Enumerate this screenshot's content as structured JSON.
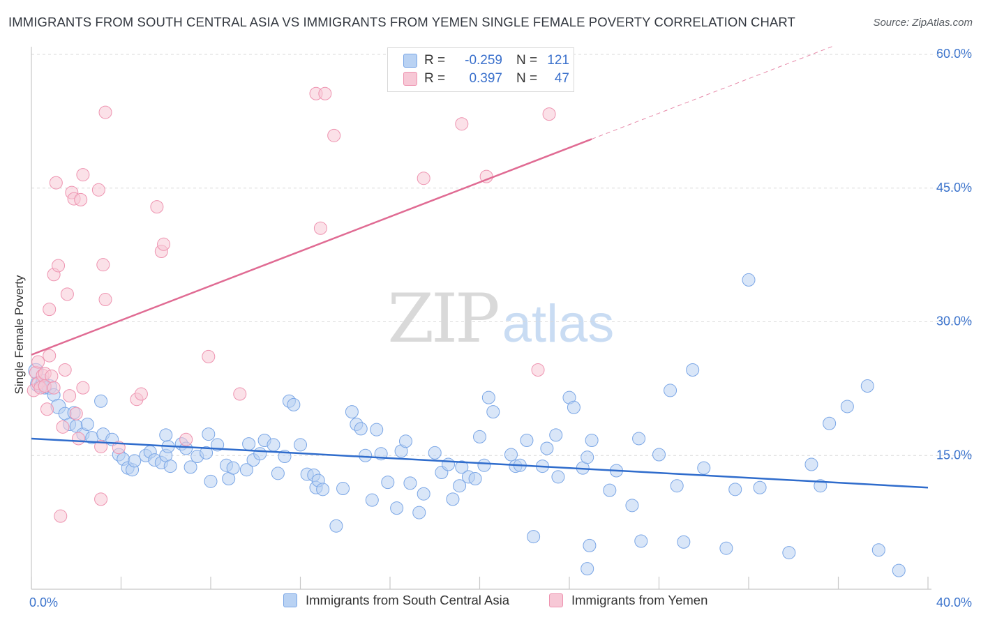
{
  "header": {
    "title": "IMMIGRANTS FROM SOUTH CENTRAL ASIA VS IMMIGRANTS FROM YEMEN SINGLE FEMALE POVERTY CORRELATION CHART",
    "source": "Source: ZipAtlas.com"
  },
  "watermark": {
    "zip": "ZIP",
    "atlas": "atlas"
  },
  "legend_top": {
    "rows": [
      {
        "r_label": "R =",
        "r_value": "-0.259",
        "n_label": "N =",
        "n_value": "121"
      },
      {
        "r_label": "R =",
        "r_value": "0.397",
        "n_label": "N =",
        "n_value": "47"
      }
    ]
  },
  "colors": {
    "blue_fill": "#b9d2f3",
    "blue_stroke": "#7aa6e6",
    "blue_line": "#2f6ccc",
    "pink_fill": "#f7c8d6",
    "pink_stroke": "#ee93b0",
    "pink_line": "#e06b93",
    "tick_text": "#3b73cc",
    "grid": "#d9d9d9"
  },
  "chart_data": {
    "type": "scatter",
    "title": "IMMIGRANTS FROM SOUTH CENTRAL ASIA VS IMMIGRANTS FROM YEMEN SINGLE FEMALE POVERTY CORRELATION CHART",
    "ylabel": "Single Female Poverty",
    "xlabel": "",
    "xlim": [
      0,
      40
    ],
    "ylim": [
      0,
      60
    ],
    "x_tick_labels": [
      "0.0%",
      "40.0%"
    ],
    "y_ticks": [
      15,
      30,
      45,
      60
    ],
    "y_tick_labels": [
      "15.0%",
      "30.0%",
      "45.0%",
      "60.0%"
    ],
    "grid": "horizontal dashed",
    "legend": "bottom-center",
    "series": [
      {
        "name": "Immigrants from South Central Asia",
        "color": "blue",
        "R": -0.259,
        "N": 121,
        "trend": {
          "x": [
            0,
            40
          ],
          "y": [
            16.9,
            11.4
          ],
          "dash_after_x": null
        },
        "points": [
          [
            0.2,
            24.5,
            2
          ],
          [
            0.3,
            23.0,
            3
          ],
          [
            0.4,
            22.8,
            1
          ],
          [
            0.5,
            23.4,
            1
          ],
          [
            0.6,
            22.6,
            1
          ],
          [
            0.8,
            22.7,
            2
          ],
          [
            1.0,
            21.8,
            1
          ],
          [
            1.2,
            20.5,
            2
          ],
          [
            1.5,
            19.7,
            1
          ],
          [
            1.7,
            18.5,
            1
          ],
          [
            1.9,
            19.8,
            1
          ],
          [
            2.0,
            18.3,
            1
          ],
          [
            2.3,
            17.4,
            1
          ],
          [
            2.5,
            18.5,
            1
          ],
          [
            2.7,
            17.0,
            1
          ],
          [
            3.1,
            21.1,
            1
          ],
          [
            3.2,
            17.4,
            1
          ],
          [
            3.6,
            16.8,
            1
          ],
          [
            3.9,
            15.1,
            1
          ],
          [
            4.1,
            14.6,
            1
          ],
          [
            4.3,
            13.6,
            1
          ],
          [
            4.5,
            13.4,
            1
          ],
          [
            4.6,
            14.4,
            1
          ],
          [
            5.1,
            15.0,
            1
          ],
          [
            5.3,
            15.4,
            1
          ],
          [
            5.5,
            14.5,
            1
          ],
          [
            5.8,
            14.2,
            1
          ],
          [
            6.0,
            15.0,
            1
          ],
          [
            6.1,
            16.0,
            1
          ],
          [
            6.0,
            17.3,
            1
          ],
          [
            6.2,
            13.8,
            1
          ],
          [
            6.7,
            16.3,
            1
          ],
          [
            6.9,
            15.8,
            1
          ],
          [
            7.1,
            13.7,
            1
          ],
          [
            7.4,
            14.9,
            1
          ],
          [
            7.8,
            15.3,
            1
          ],
          [
            7.9,
            17.4,
            1
          ],
          [
            8.0,
            12.1,
            1
          ],
          [
            8.3,
            16.2,
            1
          ],
          [
            8.7,
            13.9,
            1
          ],
          [
            8.8,
            12.4,
            1
          ],
          [
            9.0,
            13.6,
            1
          ],
          [
            9.6,
            13.4,
            1
          ],
          [
            9.7,
            16.3,
            1
          ],
          [
            9.9,
            14.5,
            1
          ],
          [
            10.2,
            15.2,
            1
          ],
          [
            10.4,
            16.7,
            1
          ],
          [
            10.8,
            16.2,
            1
          ],
          [
            11.0,
            13.0,
            1
          ],
          [
            11.3,
            14.9,
            1
          ],
          [
            12.0,
            16.2,
            1
          ],
          [
            11.5,
            21.1,
            1
          ],
          [
            11.7,
            20.7,
            1
          ],
          [
            12.3,
            12.9,
            1
          ],
          [
            12.6,
            12.8,
            1
          ],
          [
            12.7,
            11.4,
            1
          ],
          [
            12.8,
            12.2,
            1
          ],
          [
            13.0,
            11.2,
            1
          ],
          [
            13.6,
            7.1,
            1
          ],
          [
            13.9,
            11.3,
            1
          ],
          [
            14.3,
            19.9,
            1
          ],
          [
            14.5,
            18.5,
            1
          ],
          [
            14.7,
            18.0,
            1
          ],
          [
            14.9,
            15.0,
            1
          ],
          [
            15.2,
            10.0,
            1
          ],
          [
            15.4,
            17.9,
            1
          ],
          [
            15.6,
            15.2,
            1
          ],
          [
            15.9,
            12.0,
            1
          ],
          [
            16.3,
            9.1,
            1
          ],
          [
            16.5,
            15.5,
            1
          ],
          [
            16.7,
            16.6,
            1
          ],
          [
            16.9,
            11.9,
            1
          ],
          [
            17.3,
            8.6,
            1
          ],
          [
            17.5,
            10.7,
            1
          ],
          [
            18.0,
            15.3,
            1
          ],
          [
            18.3,
            13.1,
            1
          ],
          [
            18.6,
            14.0,
            1
          ],
          [
            18.8,
            10.1,
            1
          ],
          [
            19.1,
            11.6,
            1
          ],
          [
            19.2,
            13.7,
            1
          ],
          [
            19.5,
            12.6,
            1
          ],
          [
            19.8,
            12.4,
            1
          ],
          [
            20.2,
            13.9,
            1
          ],
          [
            20.0,
            17.1,
            1
          ],
          [
            20.6,
            19.9,
            1
          ],
          [
            20.4,
            21.5,
            1
          ],
          [
            21.4,
            15.1,
            1
          ],
          [
            21.6,
            13.8,
            1
          ],
          [
            21.8,
            13.9,
            1
          ],
          [
            22.1,
            16.7,
            1
          ],
          [
            22.4,
            5.9,
            1
          ],
          [
            22.8,
            13.8,
            1
          ],
          [
            23.0,
            15.8,
            1
          ],
          [
            23.5,
            12.6,
            1
          ],
          [
            23.4,
            17.3,
            1
          ],
          [
            24.0,
            21.5,
            1
          ],
          [
            24.2,
            20.4,
            1
          ],
          [
            24.6,
            13.6,
            1
          ],
          [
            24.8,
            14.8,
            1
          ],
          [
            24.8,
            2.3,
            1
          ],
          [
            24.9,
            4.9,
            1
          ],
          [
            25.0,
            16.7,
            1
          ],
          [
            25.8,
            11.1,
            1
          ],
          [
            26.1,
            13.3,
            1
          ],
          [
            26.8,
            9.4,
            1
          ],
          [
            27.1,
            16.9,
            1
          ],
          [
            27.2,
            5.4,
            1
          ],
          [
            28.0,
            15.1,
            1
          ],
          [
            28.5,
            22.3,
            1
          ],
          [
            28.8,
            11.6,
            1
          ],
          [
            29.5,
            24.6,
            1
          ],
          [
            29.1,
            5.3,
            1
          ],
          [
            30.0,
            13.6,
            1
          ],
          [
            31.0,
            4.6,
            1
          ],
          [
            31.4,
            11.2,
            1
          ],
          [
            32.0,
            34.7,
            1
          ],
          [
            32.5,
            11.4,
            1
          ],
          [
            33.8,
            4.1,
            1
          ],
          [
            34.8,
            14.0,
            1
          ],
          [
            35.2,
            11.6,
            1
          ],
          [
            35.6,
            18.6,
            1
          ],
          [
            36.4,
            20.5,
            1
          ],
          [
            37.3,
            22.8,
            1
          ],
          [
            37.8,
            4.4,
            1
          ],
          [
            38.7,
            2.1,
            1
          ]
        ]
      },
      {
        "name": "Immigrants from Yemen",
        "color": "pink",
        "R": 0.397,
        "N": 47,
        "trend": {
          "x": [
            0,
            25
          ],
          "y": [
            26.3,
            50.5
          ],
          "dash_to": [
            40,
            64.9
          ]
        },
        "points": [
          [
            0.1,
            22.3,
            1
          ],
          [
            0.2,
            24.3,
            1
          ],
          [
            0.3,
            25.5,
            1
          ],
          [
            0.3,
            23.1,
            1
          ],
          [
            0.4,
            22.6,
            1
          ],
          [
            0.5,
            24.0,
            1
          ],
          [
            0.6,
            22.8,
            1
          ],
          [
            0.6,
            24.2,
            1
          ],
          [
            0.7,
            20.2,
            1
          ],
          [
            0.8,
            31.4,
            1
          ],
          [
            0.8,
            26.2,
            1
          ],
          [
            0.9,
            23.9,
            1
          ],
          [
            1.0,
            22.6,
            1
          ],
          [
            1.0,
            35.3,
            1
          ],
          [
            1.1,
            45.6,
            1
          ],
          [
            1.2,
            36.3,
            1
          ],
          [
            1.3,
            8.2,
            1
          ],
          [
            1.4,
            18.2,
            1
          ],
          [
            1.5,
            24.6,
            1
          ],
          [
            1.6,
            33.1,
            1
          ],
          [
            1.7,
            21.7,
            1
          ],
          [
            1.8,
            44.5,
            1
          ],
          [
            1.9,
            43.8,
            1
          ],
          [
            2.0,
            19.7,
            1
          ],
          [
            2.1,
            16.9,
            1
          ],
          [
            2.2,
            43.7,
            1
          ],
          [
            2.3,
            22.6,
            1
          ],
          [
            2.3,
            46.5,
            1
          ],
          [
            3.0,
            44.8,
            1
          ],
          [
            3.1,
            16.0,
            1
          ],
          [
            3.1,
            10.1,
            1
          ],
          [
            3.2,
            36.4,
            1
          ],
          [
            3.3,
            32.5,
            1
          ],
          [
            3.3,
            53.5,
            1
          ],
          [
            3.9,
            15.9,
            1
          ],
          [
            4.7,
            21.3,
            1
          ],
          [
            4.9,
            21.9,
            1
          ],
          [
            5.6,
            42.9,
            1
          ],
          [
            5.8,
            37.9,
            1
          ],
          [
            5.9,
            38.7,
            1
          ],
          [
            6.9,
            16.8,
            1
          ],
          [
            7.9,
            26.1,
            1
          ],
          [
            9.3,
            21.9,
            1
          ],
          [
            12.7,
            55.6,
            1
          ],
          [
            12.9,
            40.5,
            1
          ],
          [
            13.1,
            55.6,
            1
          ],
          [
            13.5,
            50.9,
            1
          ],
          [
            17.5,
            46.1,
            1
          ],
          [
            19.2,
            52.2,
            1
          ],
          [
            20.3,
            46.3,
            1
          ],
          [
            22.6,
            24.6,
            1
          ],
          [
            23.1,
            53.3,
            1
          ]
        ]
      }
    ]
  },
  "legend_bottom": {
    "items": [
      {
        "label": "Immigrants from South Central Asia"
      },
      {
        "label": "Immigrants from Yemen"
      }
    ]
  }
}
